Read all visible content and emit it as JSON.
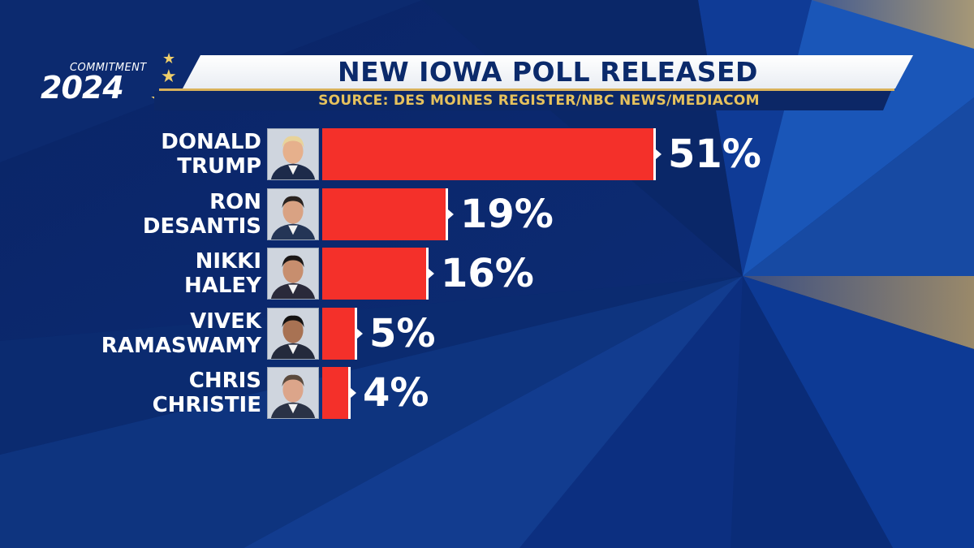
{
  "header": {
    "logo_small": "COMMITMENT",
    "logo_year": "2024",
    "title": "NEW IOWA POLL RELEASED",
    "source": "SOURCE: DES MOINES REGISTER/NBC NEWS/MEDIACOM"
  },
  "colors": {
    "background": "#0b2a6b",
    "bar": "#f4302a",
    "gold": "#d9b25b",
    "text": "#ffffff"
  },
  "chart_data": {
    "type": "bar",
    "orientation": "horizontal",
    "title": "NEW IOWA POLL RELEASED",
    "categories": [
      "DONALD TRUMP",
      "RON DESANTIS",
      "NIKKI HALEY",
      "VIVEK RAMASWAMY",
      "CHRIS CHRISTIE"
    ],
    "values": [
      51,
      19,
      16,
      5,
      4
    ],
    "value_labels": [
      "51%",
      "19%",
      "16%",
      "5%",
      "4%"
    ],
    "rows": [
      {
        "line1": "DONALD",
        "line2": "TRUMP",
        "value": 51,
        "label": "51%",
        "icon": "portrait-icon"
      },
      {
        "line1": "RON",
        "line2": "DESANTIS",
        "value": 19,
        "label": "19%",
        "icon": "portrait-icon"
      },
      {
        "line1": "NIKKI",
        "line2": "HALEY",
        "value": 16,
        "label": "16%",
        "icon": "portrait-icon"
      },
      {
        "line1": "VIVEK",
        "line2": "RAMASWAMY",
        "value": 5,
        "label": "5%",
        "icon": "portrait-icon"
      },
      {
        "line1": "CHRIS",
        "line2": "CHRISTIE",
        "value": 4,
        "label": "4%",
        "icon": "portrait-icon"
      }
    ],
    "xlim": [
      0,
      51
    ],
    "grid": false,
    "legend": "none"
  }
}
